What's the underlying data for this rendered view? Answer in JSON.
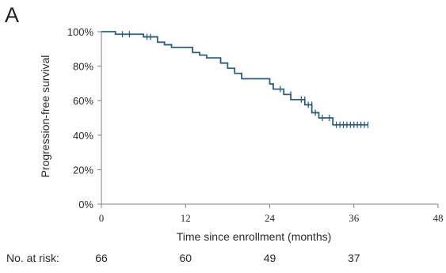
{
  "panel_label": "A",
  "no_at_risk_label": "No. at risk:",
  "colors": {
    "curve": "#2e5d7e",
    "censor": "#2e5d7e",
    "axis": "#7f7f7f",
    "text": "#2a2a2a"
  },
  "chart_data": {
    "type": "line",
    "subtype": "kaplan-meier-step",
    "title": "",
    "xlabel": "Time since enrollment (months)",
    "ylabel": "Progression-free survival",
    "xlim": [
      0,
      48
    ],
    "ylim": [
      0,
      100
    ],
    "x_ticks": [
      0,
      12,
      24,
      36,
      48
    ],
    "y_ticks": [
      0,
      20,
      40,
      60,
      80,
      100
    ],
    "y_tick_labels": [
      "0%",
      "20%",
      "40%",
      "60%",
      "80%",
      "100%"
    ],
    "grid": false,
    "legend": "none",
    "series": [
      {
        "x": [
          0,
          2,
          3,
          6,
          7,
          8,
          9,
          10,
          13,
          14,
          15,
          17,
          18,
          19,
          20,
          22,
          24,
          24.5,
          26,
          27,
          28,
          29,
          30,
          31,
          32,
          33,
          35,
          36,
          38
        ],
        "y": [
          100,
          98.5,
          98.5,
          97,
          97,
          93.9,
          92.4,
          90.9,
          87.9,
          86.4,
          84.8,
          81.8,
          78.8,
          75.8,
          72.7,
          72.7,
          69.7,
          66.7,
          63.6,
          60.6,
          60.6,
          57.6,
          53,
          50,
          50,
          46,
          46,
          46,
          46
        ]
      }
    ],
    "censor_marks": {
      "x": [
        3,
        4,
        6.5,
        7,
        25.5,
        27,
        28.5,
        29,
        29.5,
        30,
        30.5,
        31.5,
        32.5,
        33.5,
        34,
        34.5,
        35,
        35.5,
        36,
        36.5,
        37,
        37.5,
        38
      ],
      "y": [
        98.5,
        98.5,
        97,
        97,
        66.7,
        63.6,
        60.6,
        60.6,
        57.6,
        57.6,
        53,
        50,
        50,
        46,
        46,
        46,
        46,
        46,
        46,
        46,
        46,
        46,
        46
      ]
    },
    "number_at_risk": [
      {
        "time": 0,
        "count": 66
      },
      {
        "time": 12,
        "count": 60
      },
      {
        "time": 24,
        "count": 49
      },
      {
        "time": 36,
        "count": 37
      }
    ]
  }
}
